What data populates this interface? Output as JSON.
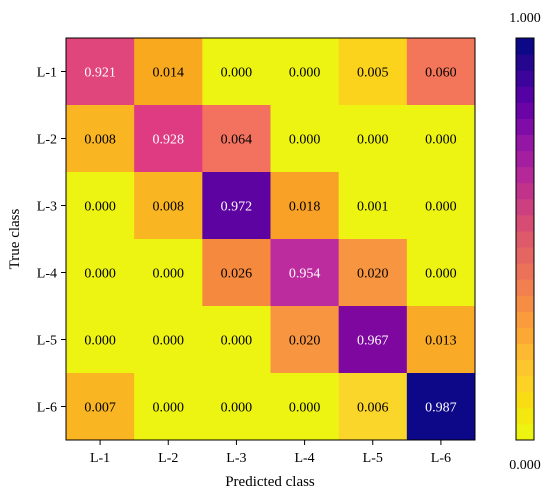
{
  "chart_data": {
    "type": "heatmap",
    "xlabel": "Predicted class",
    "ylabel": "True class",
    "x_categories": [
      "L-1",
      "L-2",
      "L-3",
      "L-4",
      "L-5",
      "L-6"
    ],
    "y_categories": [
      "L-1",
      "L-2",
      "L-3",
      "L-4",
      "L-5",
      "L-6"
    ],
    "values": [
      [
        0.921,
        0.014,
        0.0,
        0.0,
        0.005,
        0.06
      ],
      [
        0.008,
        0.928,
        0.064,
        0.0,
        0.0,
        0.0
      ],
      [
        0.0,
        0.008,
        0.972,
        0.018,
        0.001,
        0.0
      ],
      [
        0.0,
        0.0,
        0.026,
        0.954,
        0.02,
        0.0
      ],
      [
        0.0,
        0.0,
        0.0,
        0.02,
        0.967,
        0.013
      ],
      [
        0.007,
        0.0,
        0.0,
        0.0,
        0.006,
        0.987
      ]
    ],
    "cell_colors": [
      [
        "#e0457b",
        "#f9a91d",
        "#eef411",
        "#eef411",
        "#fbd31d",
        "#f3765a"
      ],
      [
        "#fab522",
        "#de3b83",
        "#f2715f",
        "#eef411",
        "#eef411",
        "#eef411"
      ],
      [
        "#eef411",
        "#fab522",
        "#5c03a2",
        "#f8a126",
        "#eef411",
        "#eef411"
      ],
      [
        "#eef411",
        "#eef411",
        "#f5893e",
        "#bd2c9e",
        "#f89540",
        "#eef411"
      ],
      [
        "#eef411",
        "#eef411",
        "#eef411",
        "#f89540",
        "#7d079f",
        "#f9ab28"
      ],
      [
        "#fab522",
        "#eef411",
        "#eef411",
        "#eef411",
        "#fad52a",
        "#0d0887"
      ]
    ],
    "colorbar": {
      "min": 0.0,
      "max": 1.0,
      "min_label": "0.000",
      "max_label": "1.000",
      "colors": [
        "#eef411",
        "#f3e80f",
        "#f8dd14",
        "#fcd225",
        "#fdc62e",
        "#fdb931",
        "#fca835",
        "#fa9b3c",
        "#f68d45",
        "#f17f4f",
        "#eb7258",
        "#e56562",
        "#de596a",
        "#d64c74",
        "#cc4080",
        "#c1338b",
        "#b42897",
        "#a41ea0",
        "#9316a5",
        "#7f0ca7",
        "#6b04a6",
        "#5402a3",
        "#3d049c",
        "#25068f",
        "#0d0887"
      ]
    },
    "text_colors": {
      "light": "#ffffff",
      "dark": "#000000"
    },
    "light_text_threshold": 0.9
  }
}
